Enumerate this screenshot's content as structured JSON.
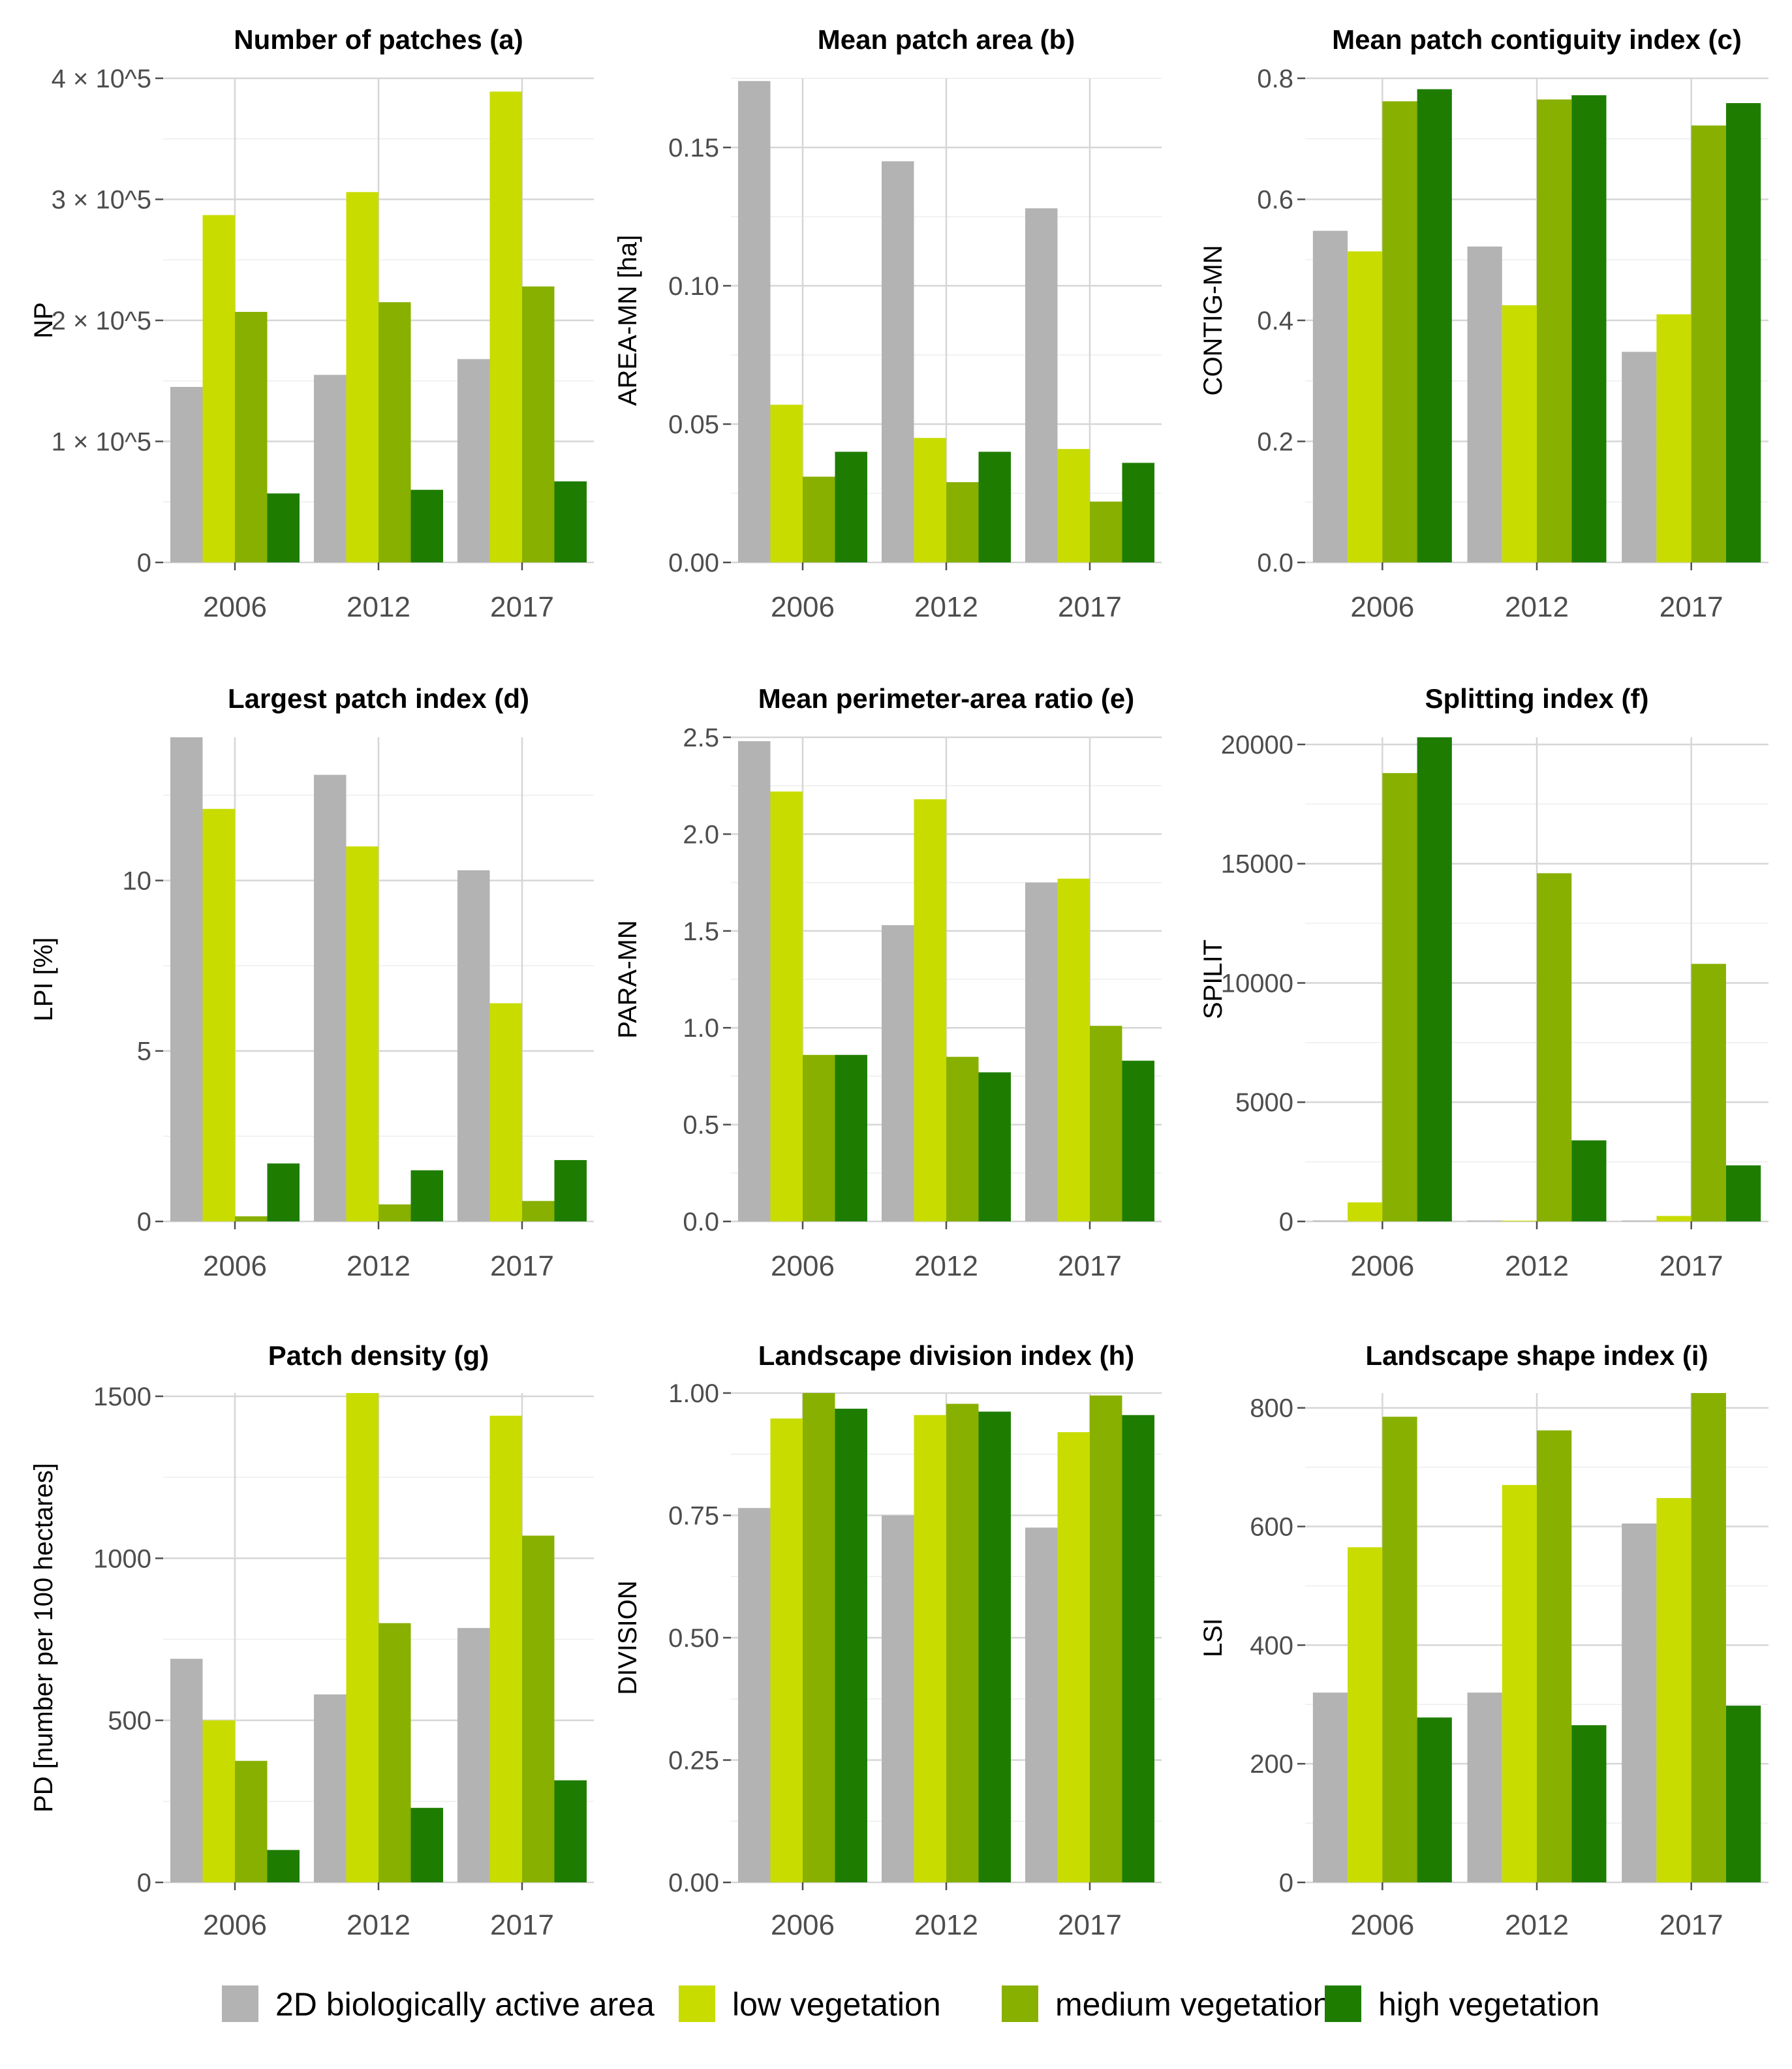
{
  "legend": {
    "items": [
      {
        "label": "2D biologically active area",
        "color": "#b3b3b3"
      },
      {
        "label": "low vegetation",
        "color": "#c8dc00"
      },
      {
        "label": "medium vegetation",
        "color": "#88b000"
      },
      {
        "label": "high vegetation",
        "color": "#1e7d00"
      }
    ]
  },
  "chart_data": [
    {
      "type": "bar",
      "title": "Number of patches (a)",
      "xlabel": "",
      "ylabel": "NP",
      "categories": [
        "2006",
        "2012",
        "2017"
      ],
      "ylim": [
        0,
        400000
      ],
      "yticks": [
        0,
        100000,
        200000,
        300000,
        400000
      ],
      "ytick_labels": [
        "0",
        "1 × 10^5",
        "2 × 10^5",
        "3 × 10^5",
        "4 × 10^5"
      ],
      "series": [
        {
          "name": "2D biologically active area",
          "values": [
            145000,
            155000,
            168000
          ]
        },
        {
          "name": "low vegetation",
          "values": [
            287000,
            306000,
            389000
          ]
        },
        {
          "name": "medium vegetation",
          "values": [
            207000,
            215000,
            228000
          ]
        },
        {
          "name": "high vegetation",
          "values": [
            57000,
            60000,
            67000
          ]
        }
      ]
    },
    {
      "type": "bar",
      "title": "Mean patch area (b)",
      "xlabel": "",
      "ylabel": "AREA-MN [ha]",
      "categories": [
        "2006",
        "2012",
        "2017"
      ],
      "ylim": [
        0,
        0.175
      ],
      "yticks": [
        0,
        0.05,
        0.1,
        0.15
      ],
      "ytick_labels": [
        "0.00",
        "0.05",
        "0.10",
        "0.15"
      ],
      "series": [
        {
          "name": "2D biologically active area",
          "values": [
            0.174,
            0.145,
            0.128
          ]
        },
        {
          "name": "low vegetation",
          "values": [
            0.057,
            0.045,
            0.041
          ]
        },
        {
          "name": "medium vegetation",
          "values": [
            0.031,
            0.029,
            0.022
          ]
        },
        {
          "name": "high vegetation",
          "values": [
            0.04,
            0.04,
            0.036
          ]
        }
      ]
    },
    {
      "type": "bar",
      "title": "Mean patch contiguity index (c)",
      "xlabel": "",
      "ylabel": "CONTIG-MN",
      "categories": [
        "2006",
        "2012",
        "2017"
      ],
      "ylim": [
        0,
        0.8
      ],
      "yticks": [
        0,
        0.2,
        0.4,
        0.6,
        0.8
      ],
      "ytick_labels": [
        "0.0",
        "0.2",
        "0.4",
        "0.6",
        "0.8"
      ],
      "series": [
        {
          "name": "2D biologically active area",
          "values": [
            0.548,
            0.522,
            0.348
          ]
        },
        {
          "name": "low vegetation",
          "values": [
            0.514,
            0.425,
            0.41
          ]
        },
        {
          "name": "medium vegetation",
          "values": [
            0.762,
            0.765,
            0.722
          ]
        },
        {
          "name": "high vegetation",
          "values": [
            0.782,
            0.772,
            0.759
          ]
        }
      ]
    },
    {
      "type": "bar",
      "title": "Largest patch index (d)",
      "xlabel": "",
      "ylabel": "LPI [%]",
      "categories": [
        "2006",
        "2012",
        "2017"
      ],
      "ylim": [
        0,
        14.2
      ],
      "yticks": [
        0,
        5,
        10
      ],
      "ytick_labels": [
        "0",
        "5",
        "10"
      ],
      "series": [
        {
          "name": "2D biologically active area",
          "values": [
            14.2,
            13.1,
            10.3
          ]
        },
        {
          "name": "low vegetation",
          "values": [
            12.1,
            11.0,
            6.4
          ]
        },
        {
          "name": "medium vegetation",
          "values": [
            0.15,
            0.5,
            0.6
          ]
        },
        {
          "name": "high vegetation",
          "values": [
            1.7,
            1.5,
            1.8
          ]
        }
      ]
    },
    {
      "type": "bar",
      "title": "Mean perimeter-area ratio (e)",
      "xlabel": "",
      "ylabel": "PARA-MN",
      "categories": [
        "2006",
        "2012",
        "2017"
      ],
      "ylim": [
        0,
        2.5
      ],
      "yticks": [
        0,
        0.5,
        1,
        1.5,
        2,
        2.5
      ],
      "ytick_labels": [
        "0.0",
        "0.5",
        "1.0",
        "1.5",
        "2.0",
        "2.5"
      ],
      "series": [
        {
          "name": "2D biologically active area",
          "values": [
            2.48,
            1.53,
            1.75
          ]
        },
        {
          "name": "low vegetation",
          "values": [
            2.22,
            2.18,
            1.77
          ]
        },
        {
          "name": "medium vegetation",
          "values": [
            0.86,
            0.85,
            1.01
          ]
        },
        {
          "name": "high vegetation",
          "values": [
            0.86,
            0.77,
            0.83
          ]
        }
      ]
    },
    {
      "type": "bar",
      "title": "Splitting index (f)",
      "xlabel": "",
      "ylabel": "SPILIT",
      "categories": [
        "2006",
        "2012",
        "2017"
      ],
      "ylim": [
        0,
        20300
      ],
      "yticks": [
        0,
        5000,
        10000,
        15000,
        20000
      ],
      "ytick_labels": [
        "0",
        "5000",
        "10000",
        "15000",
        "20000"
      ],
      "series": [
        {
          "name": "2D biologically active area",
          "values": [
            40,
            40,
            40
          ]
        },
        {
          "name": "low vegetation",
          "values": [
            800,
            30,
            230
          ]
        },
        {
          "name": "medium vegetation",
          "values": [
            18800,
            14600,
            10800
          ]
        },
        {
          "name": "high vegetation",
          "values": [
            20300,
            3400,
            2350
          ]
        }
      ]
    },
    {
      "type": "bar",
      "title": "Patch density (g)",
      "xlabel": "",
      "ylabel": "PD [number per 100 hectares]",
      "categories": [
        "2006",
        "2012",
        "2017"
      ],
      "ylim": [
        0,
        1510
      ],
      "yticks": [
        0,
        500,
        1000,
        1500
      ],
      "ytick_labels": [
        "0",
        "500",
        "1000",
        "1500"
      ],
      "series": [
        {
          "name": "2D biologically active area",
          "values": [
            690,
            580,
            785
          ]
        },
        {
          "name": "low vegetation",
          "values": [
            500,
            1510,
            1440
          ]
        },
        {
          "name": "medium vegetation",
          "values": [
            375,
            800,
            1070
          ]
        },
        {
          "name": "high vegetation",
          "values": [
            100,
            230,
            315
          ]
        }
      ]
    },
    {
      "type": "bar",
      "title": "Landscape division index (h)",
      "xlabel": "",
      "ylabel": "DIVISION",
      "categories": [
        "2006",
        "2012",
        "2017"
      ],
      "ylim": [
        0,
        1.0
      ],
      "yticks": [
        0,
        0.25,
        0.5,
        0.75,
        1
      ],
      "ytick_labels": [
        "0.00",
        "0.25",
        "0.50",
        "0.75",
        "1.00"
      ],
      "series": [
        {
          "name": "2D biologically active area",
          "values": [
            0.765,
            0.75,
            0.725
          ]
        },
        {
          "name": "low vegetation",
          "values": [
            0.948,
            0.955,
            0.92
          ]
        },
        {
          "name": "medium vegetation",
          "values": [
            1.0,
            0.978,
            0.995
          ]
        },
        {
          "name": "high vegetation",
          "values": [
            0.968,
            0.962,
            0.955
          ]
        }
      ]
    },
    {
      "type": "bar",
      "title": "Landscape shape index (i)",
      "xlabel": "",
      "ylabel": "LSI",
      "categories": [
        "2006",
        "2012",
        "2017"
      ],
      "ylim": [
        0,
        825
      ],
      "yticks": [
        0,
        200,
        400,
        600,
        800
      ],
      "ytick_labels": [
        "0",
        "200",
        "400",
        "600",
        "800"
      ],
      "series": [
        {
          "name": "2D biologically active area",
          "values": [
            320,
            320,
            605
          ]
        },
        {
          "name": "low vegetation",
          "values": [
            565,
            670,
            648
          ]
        },
        {
          "name": "medium vegetation",
          "values": [
            785,
            762,
            825
          ]
        },
        {
          "name": "high vegetation",
          "values": [
            278,
            265,
            298
          ]
        }
      ]
    }
  ]
}
